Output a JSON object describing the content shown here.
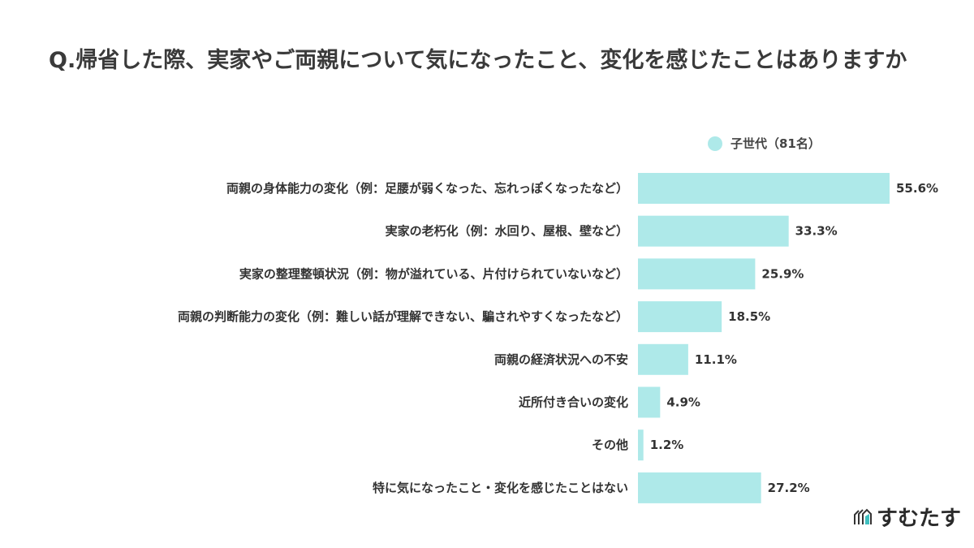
{
  "title": "Q.帰省した際、実家やご両親について気になったこと、変化を感じたことはありますか",
  "brand": {
    "logo_text": "すむたす",
    "logo_accent": "#3fbfbf"
  },
  "chart_data": {
    "type": "bar",
    "orientation": "horizontal",
    "title": "Q.帰省した際、実家やご両親について気になったこと、変化を感じたことはありますか",
    "categories": [
      "両親の身体能力の変化（例：足腰が弱くなった、忘れっぽくなったなど）",
      "実家の老朽化（例：水回り、屋根、壁など）",
      "実家の整理整頓状況（例：物が溢れている、片付けられていないなど）",
      "両親の判断能力の変化（例：難しい話が理解できない、騙されやすくなったなど）",
      "両親の経済状況への不安",
      "近所付き合いの変化",
      "その他",
      "特に気になったこと・変化を感じたことはない"
    ],
    "series": [
      {
        "name": "子世代（81名）",
        "color": "#aee9e9",
        "values": [
          55.6,
          33.3,
          25.9,
          18.5,
          11.1,
          4.9,
          1.2,
          27.2
        ]
      }
    ],
    "value_labels": [
      "55.6%",
      "33.3%",
      "25.9%",
      "18.5%",
      "11.1%",
      "4.9%",
      "1.2%",
      "27.2%"
    ],
    "legend": "top-right",
    "grid": false
  }
}
